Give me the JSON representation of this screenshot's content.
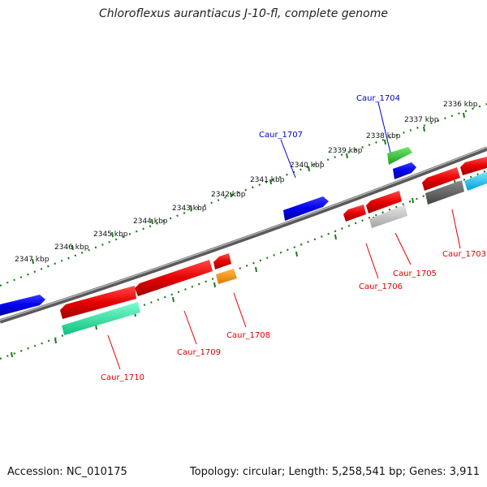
{
  "title": "Chloroflexus aurantiacus J-10-fl, complete genome",
  "footer": {
    "accession": "Accession: NC_010175",
    "summary": "Topology: circular; Length: 5,258,541 bp; Genes: 3,911"
  },
  "ticks": [
    "2336 kbp",
    "2337 kbp",
    "2338 kbp",
    "2339 kbp",
    "2340 kbp",
    "2341 kbp",
    "2342 kbp",
    "2343 kbp",
    "2344 kbp",
    "2345 kbp",
    "2346 kbp",
    "2347 kbp"
  ],
  "genes": [
    {
      "label": "Caur_1703",
      "color": "#e00000"
    },
    {
      "label": "Caur_1704",
      "color": "#0000cc"
    },
    {
      "label": "Caur_1705",
      "color": "#e00000"
    },
    {
      "label": "Caur_1706",
      "color": "#e00000"
    },
    {
      "label": "Caur_1707",
      "color": "#0000cc"
    },
    {
      "label": "Caur_1708",
      "color": "#e00000"
    },
    {
      "label": "Caur_1709",
      "color": "#e00000"
    },
    {
      "label": "Caur_1710",
      "color": "#e00000"
    }
  ],
  "colors": {
    "backbone": "#7d7d7d",
    "tick_dots": "#1a7a1a",
    "forward_gene": "#0000ee",
    "reverse_gene": "#ee0000"
  }
}
